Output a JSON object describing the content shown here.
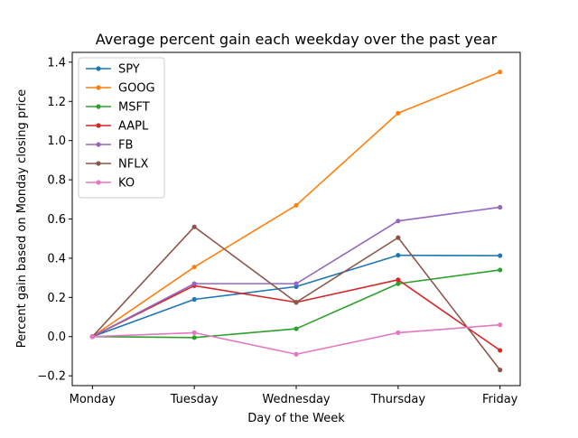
{
  "chart_data": {
    "type": "line",
    "title": "Average percent gain each weekday over the past year",
    "xlabel": "Day of the Week",
    "ylabel": "Percent gain based on Monday closing price",
    "categories": [
      "Monday",
      "Tuesday",
      "Wednesday",
      "Thursday",
      "Friday"
    ],
    "ylim": [
      -0.25,
      1.45
    ],
    "yticks": [
      -0.2,
      0.0,
      0.2,
      0.4,
      0.6,
      0.8,
      1.0,
      1.2,
      1.4
    ],
    "ytick_labels": [
      "−0.2",
      "0.0",
      "0.2",
      "0.4",
      "0.6",
      "0.8",
      "1.0",
      "1.2",
      "1.4"
    ],
    "grid": false,
    "legend_position": "top-left",
    "series": [
      {
        "name": "SPY",
        "color": "#1f77b4",
        "values": [
          0.0,
          0.19,
          0.255,
          0.415,
          0.413
        ]
      },
      {
        "name": "GOOG",
        "color": "#ff7f0e",
        "values": [
          0.0,
          0.355,
          0.67,
          1.14,
          1.35
        ]
      },
      {
        "name": "MSFT",
        "color": "#2ca02c",
        "values": [
          0.0,
          -0.005,
          0.04,
          0.27,
          0.34
        ]
      },
      {
        "name": "AAPL",
        "color": "#d62728",
        "values": [
          0.0,
          0.26,
          0.175,
          0.29,
          -0.07
        ]
      },
      {
        "name": "FB",
        "color": "#9467bd",
        "values": [
          0.0,
          0.27,
          0.27,
          0.59,
          0.66
        ]
      },
      {
        "name": "NFLX",
        "color": "#8c564b",
        "values": [
          0.0,
          0.56,
          0.175,
          0.505,
          -0.17
        ]
      },
      {
        "name": "KO",
        "color": "#e377c2",
        "values": [
          0.0,
          0.02,
          -0.09,
          0.02,
          0.06
        ]
      }
    ]
  }
}
